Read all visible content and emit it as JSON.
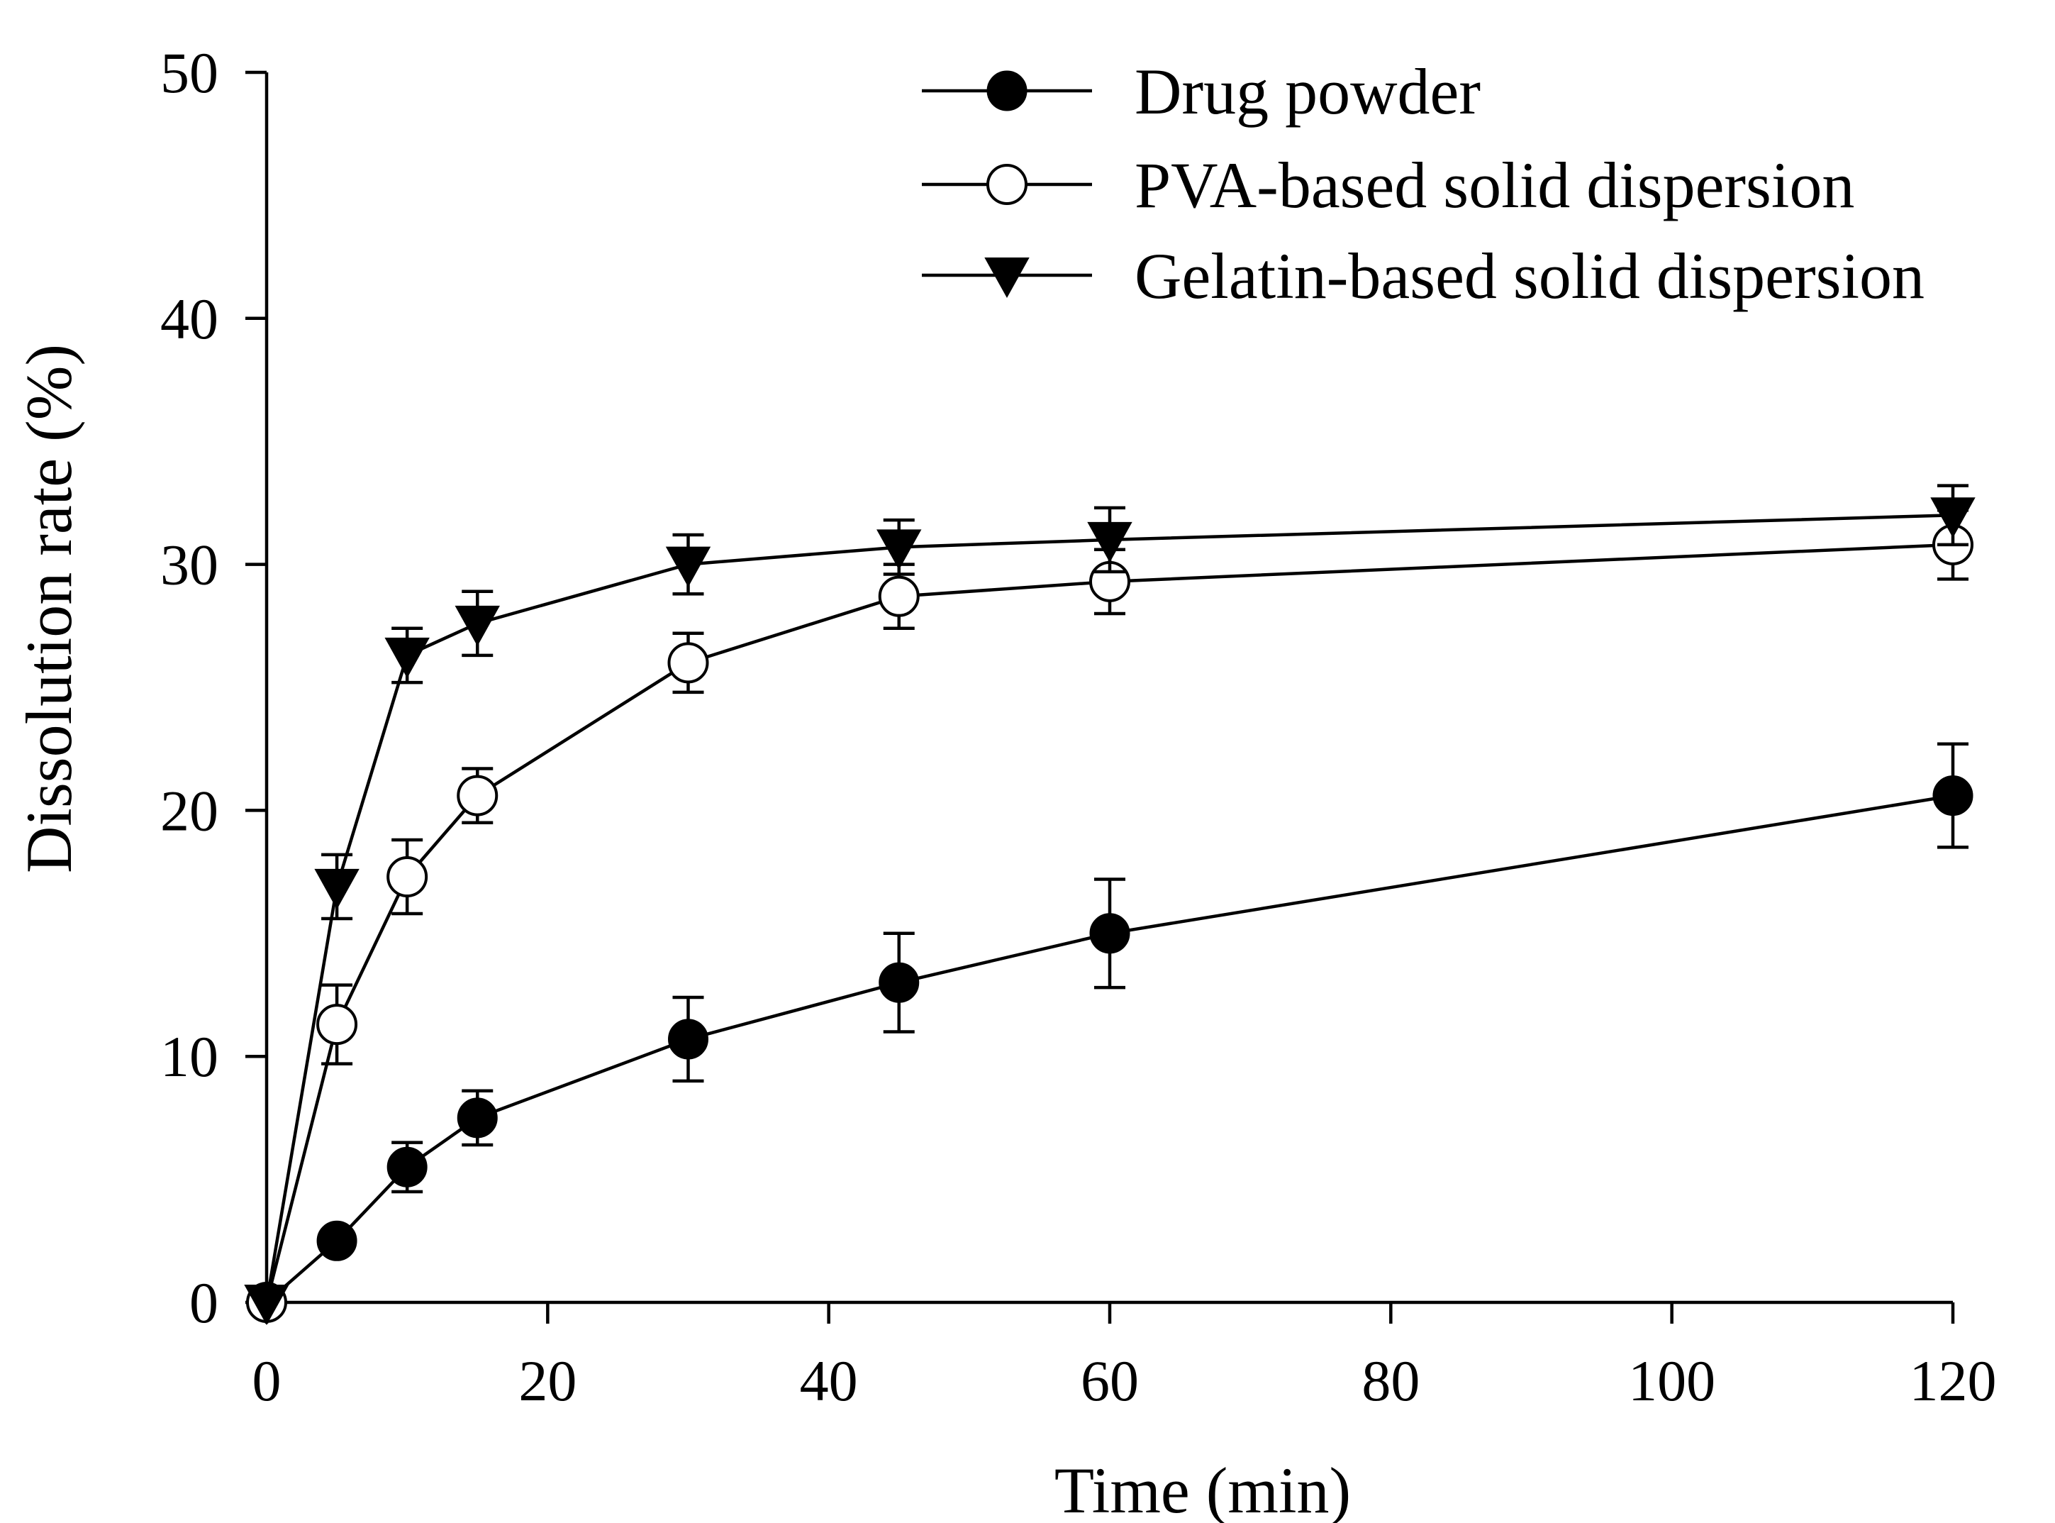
{
  "chart_data": {
    "type": "line",
    "title": "",
    "xlabel": "Time (min)",
    "ylabel": "Dissolution rate (%)",
    "xlim": [
      0,
      120
    ],
    "ylim": [
      0,
      50
    ],
    "xticks": [
      0,
      20,
      40,
      60,
      80,
      100,
      120
    ],
    "yticks": [
      0,
      10,
      20,
      30,
      40,
      50
    ],
    "xtick_labels": [
      "0",
      "20",
      "40",
      "60",
      "80",
      "100",
      "120"
    ],
    "ytick_labels": [
      "0",
      "10",
      "20",
      "30",
      "40",
      "50"
    ],
    "grid": false,
    "legend_position": "top-right",
    "series": [
      {
        "name": "Drug powder",
        "marker": "filled-circle",
        "x": [
          0,
          5,
          10,
          15,
          30,
          45,
          60,
          120
        ],
        "y": [
          0,
          2.5,
          5.5,
          7.5,
          10.7,
          13.0,
          15.0,
          20.6
        ],
        "error": [
          0,
          0,
          1.0,
          1.1,
          1.7,
          2.0,
          2.2,
          2.1
        ]
      },
      {
        "name": "PVA-based solid dispersion",
        "marker": "open-circle",
        "x": [
          0,
          5,
          10,
          15,
          30,
          45,
          60,
          120
        ],
        "y": [
          0,
          11.3,
          17.3,
          20.6,
          26.0,
          28.7,
          29.3,
          30.8
        ],
        "error": [
          0,
          1.6,
          1.5,
          1.1,
          1.2,
          1.3,
          1.3,
          1.4
        ]
      },
      {
        "name": "Gelatin-based solid dispersion",
        "marker": "filled-triangle-down",
        "x": [
          0,
          5,
          10,
          15,
          30,
          45,
          60,
          120
        ],
        "y": [
          0,
          16.9,
          26.3,
          27.6,
          30.0,
          30.7,
          31.0,
          32.0
        ],
        "error": [
          0,
          1.3,
          1.1,
          1.3,
          1.2,
          1.1,
          1.3,
          1.2
        ]
      }
    ]
  }
}
